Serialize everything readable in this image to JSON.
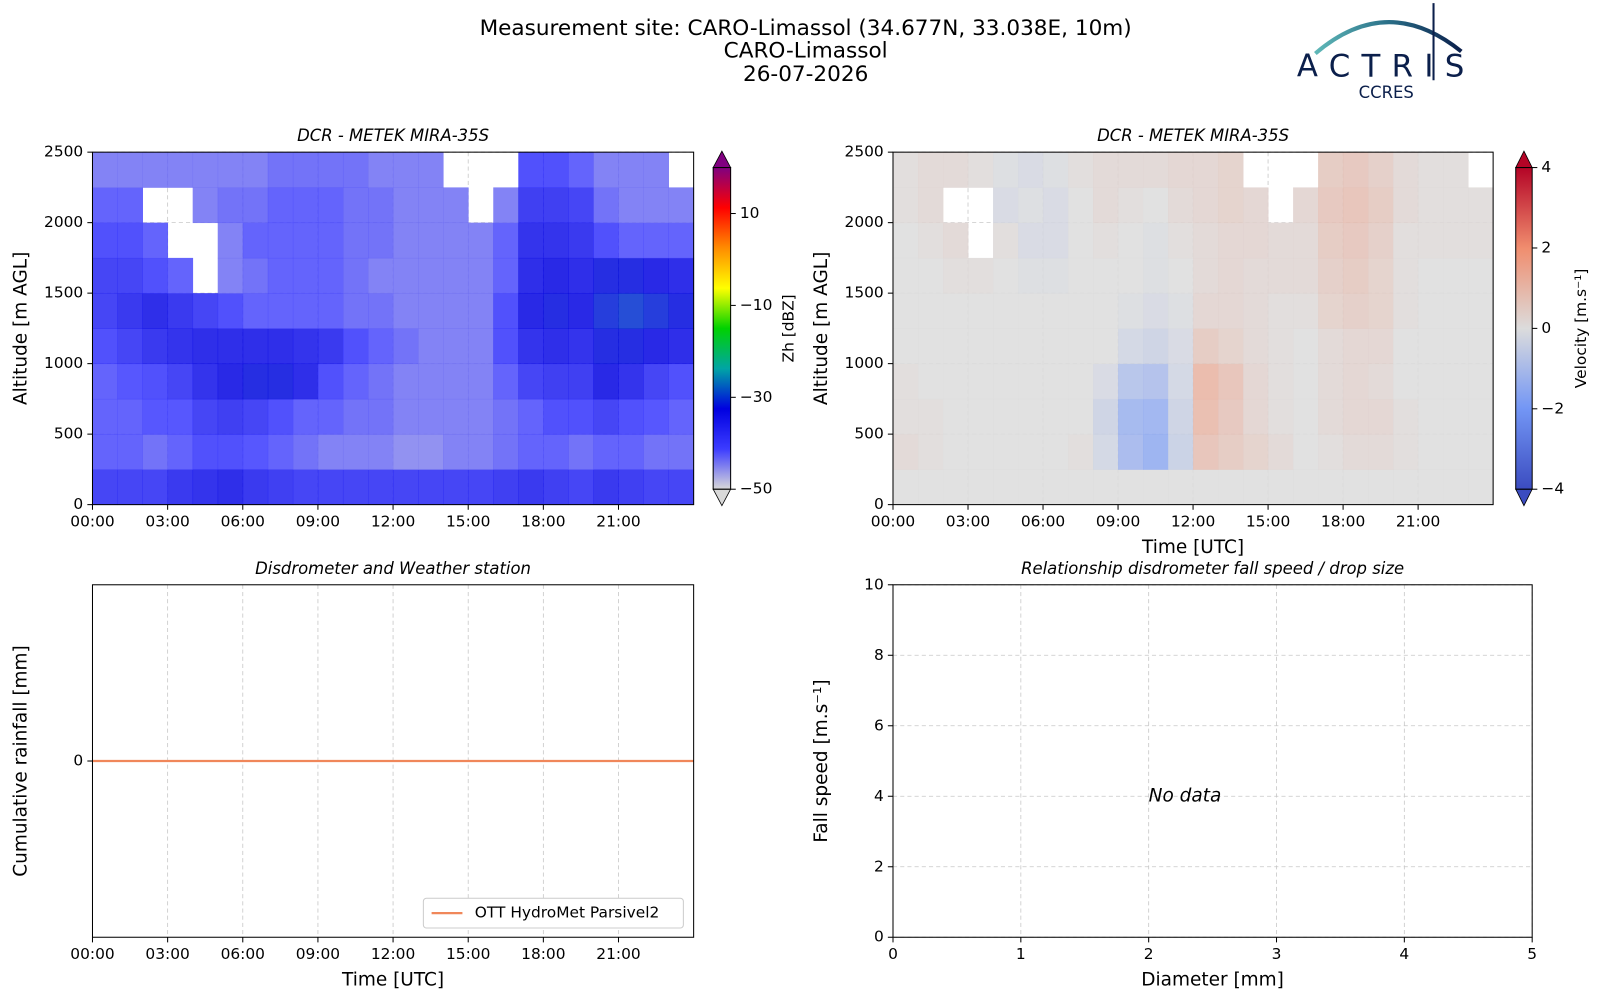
{
  "header": {
    "title": [
      "Measurement site: CARO-Limassol (34.677N, 33.038E, 10m)",
      "CARO-Limassol",
      "26-07-2026"
    ]
  },
  "logo": {
    "name": "ACTRIS",
    "subtitle": "CCRES"
  },
  "chart_data": [
    {
      "type": "heatmap",
      "title": "DCR - METEK MIRA-35S",
      "ylabel": "Altitude [m AGL]",
      "xlim": [
        0,
        24
      ],
      "xticks": [
        {
          "value": 0,
          "label": "00:00"
        },
        {
          "value": 3,
          "label": "03:00"
        },
        {
          "value": 6,
          "label": "06:00"
        },
        {
          "value": 9,
          "label": "09:00"
        },
        {
          "value": 12,
          "label": "12:00"
        },
        {
          "value": 15,
          "label": "15:00"
        },
        {
          "value": 18,
          "label": "18:00"
        },
        {
          "value": 21,
          "label": "21:00"
        }
      ],
      "ylim": [
        0,
        2500
      ],
      "yticks": [
        0,
        500,
        1000,
        1500,
        2000,
        2500
      ],
      "grid": true,
      "values": [
        [
          -38,
          -38,
          -38,
          -36,
          -35,
          -34,
          -36,
          -37,
          -38,
          -38,
          -38,
          -38,
          -38,
          -38,
          -38,
          -38,
          -37,
          -36,
          -37,
          -38,
          -36,
          -37,
          -38,
          -38
        ],
        [
          -42,
          -42,
          -43,
          -42,
          -40,
          -40,
          -41,
          -42,
          -43,
          -44,
          -44,
          -44,
          -45,
          -45,
          -44,
          -44,
          -43,
          -42,
          -42,
          -43,
          -42,
          -42,
          -43,
          -43
        ],
        [
          -42,
          -42,
          -41,
          -41,
          -38,
          -37,
          -38,
          -40,
          -42,
          -42,
          -43,
          -43,
          -44,
          -44,
          -44,
          -44,
          -43,
          -42,
          -40,
          -40,
          -38,
          -40,
          -41,
          -42
        ],
        [
          -42,
          -41,
          -40,
          -38,
          -35,
          -33,
          -32,
          -32,
          -34,
          -40,
          -42,
          -43,
          -44,
          -44,
          -44,
          -44,
          -42,
          -38,
          -37,
          -37,
          -33,
          -35,
          -38,
          -40
        ],
        [
          -40,
          -38,
          -36,
          -35,
          -34,
          -34,
          -34,
          -34,
          -35,
          -36,
          -40,
          -42,
          -43,
          -44,
          -44,
          -44,
          -40,
          -35,
          -34,
          -35,
          -32,
          -32,
          -33,
          -34
        ],
        [
          -38,
          -36,
          -34,
          -36,
          -38,
          -40,
          -42,
          -42,
          -42,
          -42,
          -43,
          -43,
          -44,
          -44,
          -44,
          -44,
          -40,
          -33,
          -32,
          -33,
          -31,
          -30,
          -31,
          -32
        ],
        [
          -38,
          -38,
          -40,
          -42,
          null,
          -44,
          -43,
          -42,
          -42,
          -42,
          -43,
          -44,
          -44,
          -44,
          -44,
          -44,
          -42,
          -34,
          -33,
          -34,
          -32,
          -32,
          -33,
          -34
        ],
        [
          -40,
          -40,
          -42,
          null,
          null,
          -44,
          -42,
          -42,
          -42,
          -42,
          -43,
          -43,
          -44,
          -44,
          -44,
          -44,
          -42,
          -35,
          -35,
          -36,
          -40,
          -42,
          -42,
          -42
        ],
        [
          -42,
          -42,
          null,
          null,
          -44,
          -43,
          -43,
          -42,
          -42,
          -42,
          -43,
          -43,
          -44,
          -44,
          -44,
          null,
          -44,
          -37,
          -37,
          -38,
          -43,
          -44,
          -44,
          -44
        ],
        [
          -44,
          -44,
          -44,
          -44,
          -44,
          -44,
          -44,
          -43,
          -43,
          -43,
          -43,
          -44,
          -44,
          -44,
          null,
          null,
          null,
          -40,
          -40,
          -42,
          -44,
          -44,
          -44,
          null
        ]
      ],
      "colorbar": {
        "label": "Zh [dBZ]",
        "lim": [
          -50,
          20
        ],
        "ticks": [
          {
            "value": -50,
            "label": "−50"
          },
          {
            "value": -30,
            "label": "−30"
          },
          {
            "value": -10,
            "label": "−10"
          },
          10
        ],
        "colors": [
          "#d9d9d9",
          "#3c3cff",
          "#0000e0",
          "#00a5a5",
          "#00d200",
          "#ffff00",
          "#ff8c00",
          "#ff0000",
          "#800080"
        ]
      }
    },
    {
      "type": "heatmap",
      "title": "DCR - METEK MIRA-35S",
      "ylabel": "Altitude [m AGL]",
      "xlabel": "Time [UTC]",
      "xlim": [
        0,
        24
      ],
      "xticks": [
        {
          "value": 0,
          "label": "00:00"
        },
        {
          "value": 3,
          "label": "03:00"
        },
        {
          "value": 6,
          "label": "06:00"
        },
        {
          "value": 9,
          "label": "09:00"
        },
        {
          "value": 12,
          "label": "12:00"
        },
        {
          "value": 15,
          "label": "15:00"
        },
        {
          "value": 18,
          "label": "18:00"
        },
        {
          "value": 21,
          "label": "21:00"
        }
      ],
      "ylim": [
        0,
        2500
      ],
      "yticks": [
        0,
        500,
        1000,
        1500,
        2000,
        2500
      ],
      "grid": true,
      "values": [
        [
          0,
          0,
          0,
          0,
          0,
          0,
          0,
          0,
          0,
          0,
          0,
          0,
          0,
          0,
          0,
          0,
          0,
          0,
          0,
          0,
          0,
          0,
          0,
          0
        ],
        [
          0.2,
          0.1,
          0,
          0,
          0,
          0,
          0,
          0.1,
          -0.3,
          -1.2,
          -1.5,
          -0.5,
          0.8,
          0.6,
          0.4,
          0.2,
          0,
          0.1,
          0.2,
          0.2,
          0.1,
          0,
          0,
          0
        ],
        [
          0.1,
          0.1,
          0,
          0,
          0,
          0,
          0,
          0,
          -0.4,
          -1.3,
          -1.4,
          -0.4,
          1.0,
          0.7,
          0.3,
          0.1,
          0,
          0.2,
          0.3,
          0.3,
          0.1,
          0,
          0,
          0
        ],
        [
          0.1,
          0,
          0,
          0,
          0,
          0,
          0,
          0,
          -0.2,
          -0.9,
          -1.0,
          -0.3,
          1.1,
          0.8,
          0.3,
          0.1,
          0,
          0.2,
          0.3,
          0.2,
          0,
          0,
          0,
          0
        ],
        [
          0,
          0,
          0,
          0,
          0,
          0,
          0,
          0,
          0,
          -0.3,
          -0.4,
          -0.2,
          0.6,
          0.4,
          0.2,
          0.1,
          0,
          0.2,
          0.3,
          0.3,
          0,
          0,
          0,
          0
        ],
        [
          0,
          0,
          0,
          0,
          0,
          0,
          0,
          0,
          0,
          -0.1,
          -0.2,
          -0.1,
          0.3,
          0.3,
          0.2,
          0.1,
          0.1,
          0.4,
          0.5,
          0.4,
          0.1,
          0,
          0,
          0
        ],
        [
          0,
          0,
          0.1,
          0.1,
          0,
          -0.1,
          -0.1,
          0,
          0,
          0,
          -0.1,
          0,
          0.2,
          0.3,
          0.2,
          0.2,
          0.2,
          0.5,
          0.6,
          0.4,
          0.1,
          0,
          0,
          0
        ],
        [
          0,
          0.1,
          0.2,
          null,
          0.1,
          -0.2,
          -0.2,
          0,
          0.1,
          0,
          -0.1,
          0.1,
          0.2,
          0.3,
          0.3,
          0.2,
          0.2,
          0.6,
          0.7,
          0.5,
          0.1,
          0.1,
          0.1,
          0.1
        ],
        [
          0.1,
          0.2,
          null,
          null,
          -0.2,
          -0.1,
          -0.2,
          0,
          0.2,
          0.1,
          0,
          0.2,
          0.3,
          0.4,
          0.3,
          null,
          0.3,
          0.7,
          0.8,
          0.6,
          0.2,
          0.1,
          0.1,
          0.1
        ],
        [
          0.1,
          0.2,
          0.2,
          0.1,
          -0.1,
          -0.2,
          -0.1,
          0.1,
          0.2,
          0.2,
          0.2,
          0.3,
          0.3,
          0.4,
          null,
          null,
          null,
          0.6,
          0.7,
          0.5,
          0.2,
          0.1,
          0.1,
          null
        ]
      ],
      "colorbar": {
        "label": "Velocity [m.s⁻¹]",
        "lim": [
          -4,
          4
        ],
        "ticks": [
          {
            "value": -4,
            "label": "−4"
          },
          {
            "value": -2,
            "label": "−2"
          },
          0,
          2,
          4
        ],
        "colors": [
          "#3b4cc0",
          "#7396f5",
          "#dcdcdc",
          "#f08d6e",
          "#b40426"
        ]
      }
    },
    {
      "type": "line",
      "title": "Disdrometer and Weather station",
      "ylabel": "Cumulative rainfall [mm]",
      "xlabel": "Time [UTC]",
      "xlim": [
        0,
        24
      ],
      "xticks": [
        {
          "value": 0,
          "label": "00:00"
        },
        {
          "value": 3,
          "label": "03:00"
        },
        {
          "value": 6,
          "label": "06:00"
        },
        {
          "value": 9,
          "label": "09:00"
        },
        {
          "value": 12,
          "label": "12:00"
        },
        {
          "value": 15,
          "label": "15:00"
        },
        {
          "value": 18,
          "label": "18:00"
        },
        {
          "value": 21,
          "label": "21:00"
        }
      ],
      "ylim": [
        -0.055,
        0.055
      ],
      "yticks": [
        0
      ],
      "grid": "x",
      "legend": "lower right",
      "x": [
        0,
        24
      ],
      "series": [
        {
          "name": "OTT HydroMet Parsivel2",
          "color": "#f0875a",
          "values": [
            0,
            0
          ]
        }
      ]
    },
    {
      "type": "scatter",
      "title": "Relationship disdrometer fall speed / drop size",
      "ylabel": "Fall speed [m.s⁻¹]",
      "xlabel": "Diameter [mm]",
      "xlim": [
        0,
        5
      ],
      "xticks": [
        0,
        1,
        2,
        3,
        4,
        5
      ],
      "ylim": [
        0,
        10
      ],
      "yticks": [
        0,
        2,
        4,
        6,
        8,
        10
      ],
      "grid": true,
      "annotation": {
        "text": "No data",
        "x": 2,
        "y": 4
      }
    }
  ]
}
